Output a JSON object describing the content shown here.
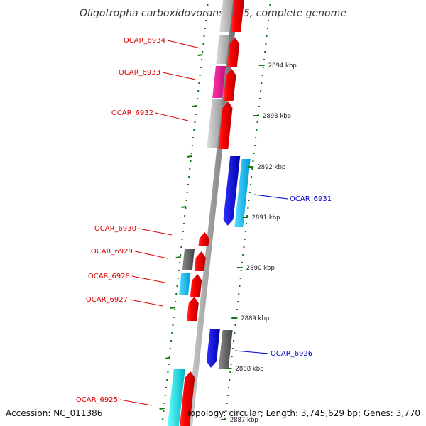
{
  "title": "Oligotropha carboxidovorans OM5, complete genome",
  "accession": "Accession: NC_011386",
  "topology": "Topology: circular; Length: 3,745,629 bp; Genes: 3,770",
  "colors": {
    "red": "#ff0000",
    "magenta": "#ee1199",
    "light_gray": "#c8c8c8",
    "dark_gray": "#666666",
    "blue": "#0000ee",
    "cyan": "#00ccff",
    "aqua": "#00e5ee",
    "tick_green": "#117711",
    "label_red": "#dd0000",
    "label_blue": "#0000cc"
  },
  "ticks": [
    "2894 kbp",
    "2893 kbp",
    "2892 kbp",
    "2891 kbp",
    "2890 kbp",
    "2889 kbp",
    "2888 kbp",
    "2887 kbp"
  ],
  "gene_labels": {
    "left": [
      "OCAR_6934",
      "OCAR_6933",
      "OCAR_6932",
      "OCAR_6930",
      "OCAR_6929",
      "OCAR_6928",
      "OCAR_6927",
      "OCAR_6925"
    ],
    "right": [
      "OCAR_6931",
      "OCAR_6926"
    ]
  }
}
